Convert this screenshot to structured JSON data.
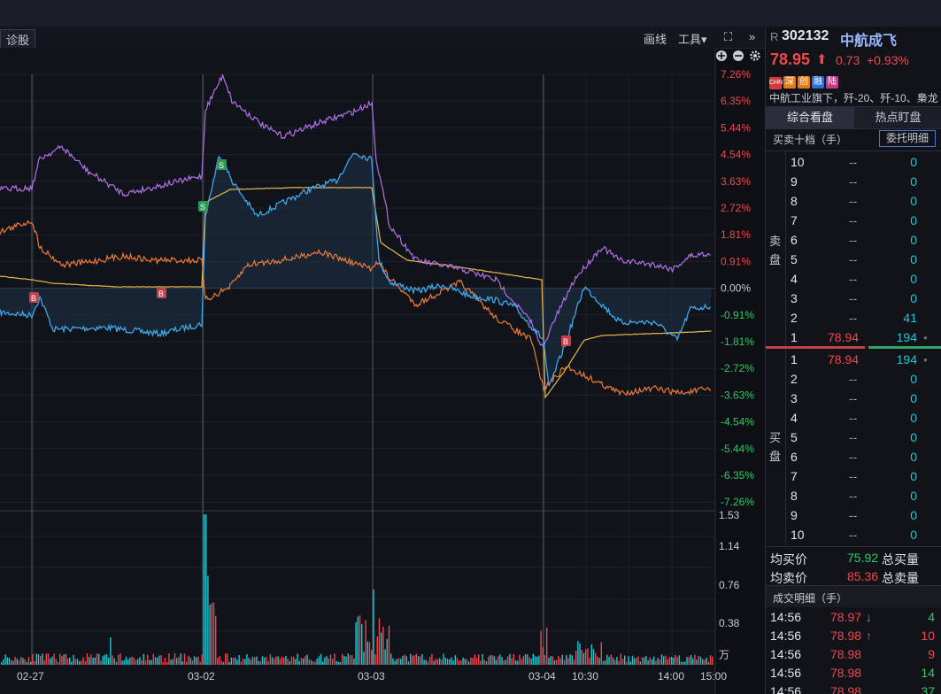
{
  "toolbar": {
    "diagnose_label": "诊股",
    "draw_label": "画线",
    "tools_label": "工具▾",
    "fullscreen_label": "⛶",
    "collapse_label": "»"
  },
  "stock": {
    "market_tag": "R",
    "code": "302132",
    "name": "中航成飞",
    "price": "78.95",
    "arrow": "⬆",
    "change": "0.73",
    "change_pct": "+0.93%",
    "badges": [
      "CHN",
      "深",
      "创",
      "融",
      "陆"
    ],
    "desc": "中航工业旗下，歼-20、歼-10、梟龙"
  },
  "tabs": {
    "active": "综合看盘",
    "other": "热点盯盘"
  },
  "orderbook": {
    "title": "买卖十档（手）",
    "detail_button": "委托明细",
    "sell_label": [
      "卖",
      "盘"
    ],
    "buy_label": [
      "买",
      "盘"
    ],
    "asks": [
      {
        "level": "10",
        "price": "--",
        "vol": "0"
      },
      {
        "level": "9",
        "price": "--",
        "vol": "0"
      },
      {
        "level": "8",
        "price": "--",
        "vol": "0"
      },
      {
        "level": "7",
        "price": "--",
        "vol": "0"
      },
      {
        "level": "6",
        "price": "--",
        "vol": "0"
      },
      {
        "level": "5",
        "price": "--",
        "vol": "0"
      },
      {
        "level": "4",
        "price": "--",
        "vol": "0"
      },
      {
        "level": "3",
        "price": "--",
        "vol": "0"
      },
      {
        "level": "2",
        "price": "--",
        "vol": "41"
      },
      {
        "level": "1",
        "price": "78.94",
        "vol": "194"
      }
    ],
    "bids": [
      {
        "level": "1",
        "price": "78.94",
        "vol": "194"
      },
      {
        "level": "2",
        "price": "--",
        "vol": "0"
      },
      {
        "level": "3",
        "price": "--",
        "vol": "0"
      },
      {
        "level": "4",
        "price": "--",
        "vol": "0"
      },
      {
        "level": "5",
        "price": "--",
        "vol": "0"
      },
      {
        "level": "6",
        "price": "--",
        "vol": "0"
      },
      {
        "level": "7",
        "price": "--",
        "vol": "0"
      },
      {
        "level": "8",
        "price": "--",
        "vol": "0"
      },
      {
        "level": "9",
        "price": "--",
        "vol": "0"
      },
      {
        "level": "10",
        "price": "--",
        "vol": "0"
      }
    ],
    "avg_buy_label": "均买价",
    "avg_buy": "75.92",
    "total_buy_label": "总买量",
    "avg_sell_label": "均卖价",
    "avg_sell": "85.36",
    "total_sell_label": "总卖量"
  },
  "trades": {
    "title": "成交明细（手）",
    "rows": [
      {
        "time": "14:56",
        "price": "78.97",
        "dir": "down",
        "vol": "4"
      },
      {
        "time": "14:56",
        "price": "78.98",
        "dir": "up",
        "vol": "10"
      },
      {
        "time": "14:56",
        "price": "78.98",
        "dir": "",
        "vol": "9"
      },
      {
        "time": "14:56",
        "price": "78.98",
        "dir": "",
        "vol": "14"
      },
      {
        "time": "14:56",
        "price": "78.98",
        "dir": "",
        "vol": "37"
      }
    ]
  },
  "chart_data": {
    "type": "line",
    "y_ticks": [
      "7.26%",
      "6.35%",
      "5.44%",
      "4.54%",
      "3.63%",
      "2.72%",
      "1.81%",
      "0.91%",
      "0.00%",
      "-0.91%",
      "-1.81%",
      "-2.72%",
      "-3.63%",
      "-4.54%",
      "-5.44%",
      "-6.35%",
      "-7.26%"
    ],
    "x_labels": [
      "02-27",
      "03-02",
      "03-03",
      "03-04",
      "10:30",
      "14:00",
      "15:00"
    ],
    "volume_ticks": [
      "1.53",
      "1.14",
      "0.76",
      "0.38",
      "万"
    ],
    "colors": {
      "price": "#3fa7ea",
      "avg": "#e8b84a",
      "purple": "#b072e6",
      "orange": "#ee7a35",
      "up": "#f0474d",
      "down": "#1ec8d0"
    },
    "markers": [
      {
        "label": "B",
        "color": "#c2414a"
      },
      {
        "label": "B",
        "color": "#c2414a"
      },
      {
        "label": "S",
        "color": "#2f9a56"
      },
      {
        "label": "S",
        "color": "#2f9a56"
      },
      {
        "label": "B",
        "color": "#c2414a"
      }
    ]
  }
}
